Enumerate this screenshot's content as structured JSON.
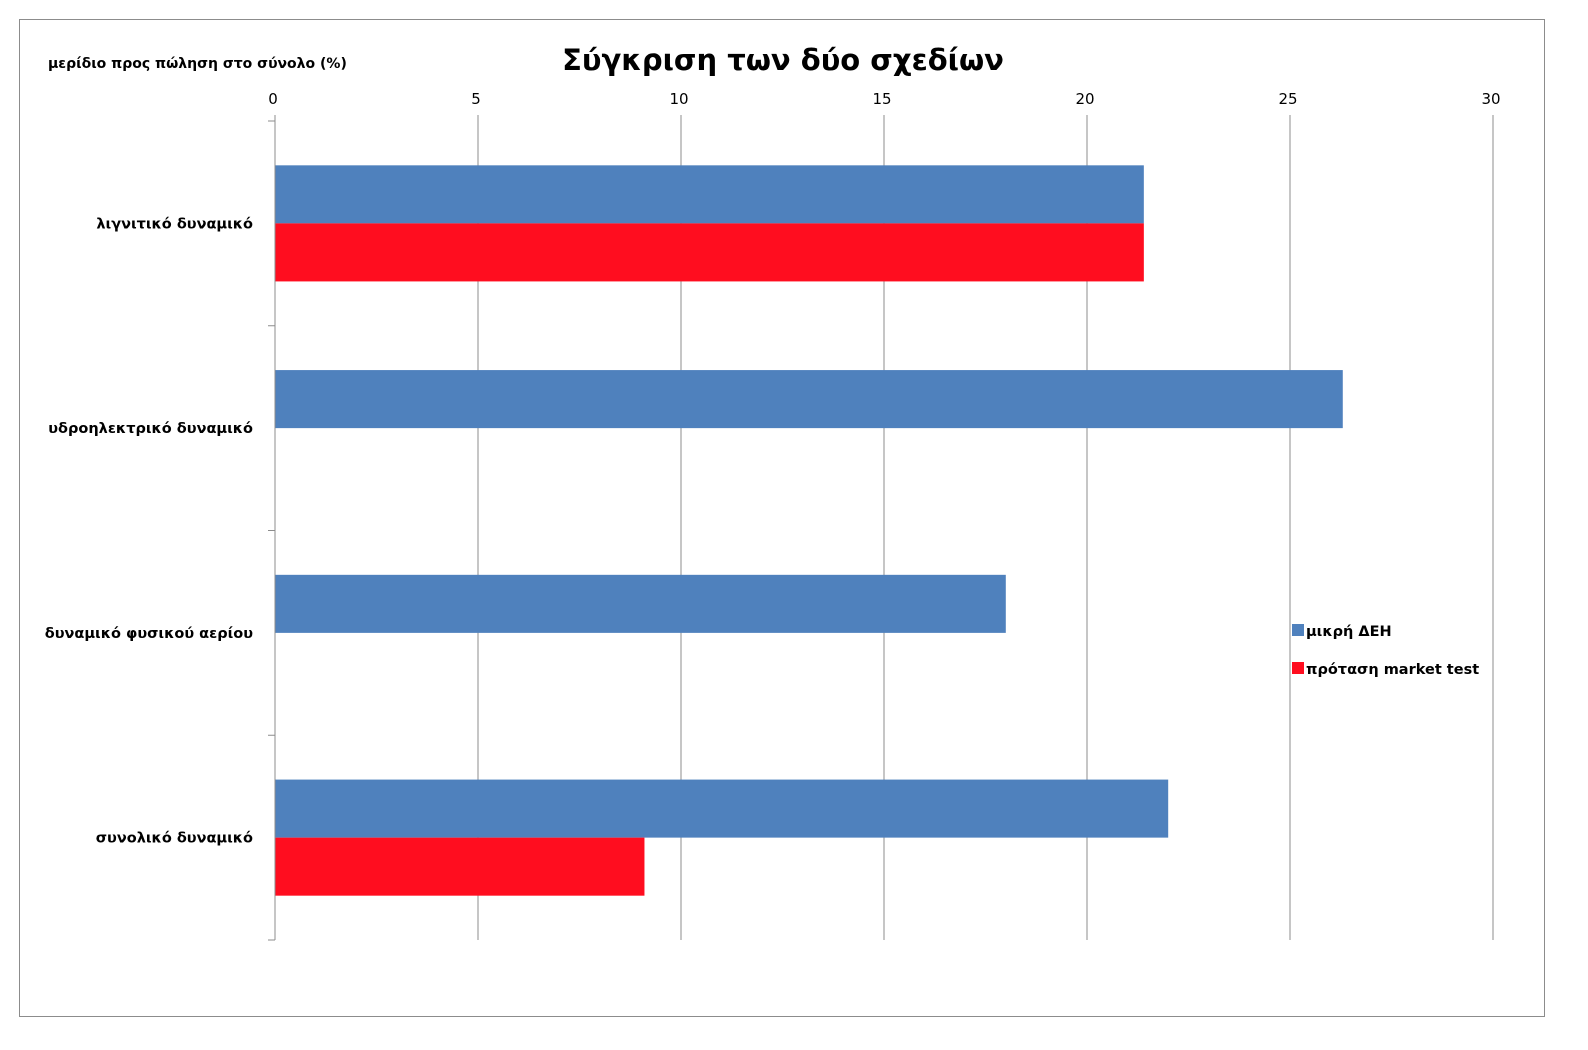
{
  "chart_data": {
    "type": "bar",
    "orientation": "horizontal",
    "title": "Σύγκριση των δύο σχεδίων",
    "unit_label": "μερίδιο προς πώληση στο σύνολο (%)",
    "categories": [
      "λιγνιτικό δυναμικό",
      "υδροηλεκτρικό δυναμικό",
      "δυναμικό φυσικού αερίου",
      "συνολικό δυναμικό"
    ],
    "xlim": [
      0,
      30
    ],
    "xticks": [
      0,
      5,
      10,
      15,
      20,
      25,
      30
    ],
    "grid": true,
    "legend_position": "right",
    "axis_position": "top",
    "series": [
      {
        "name": "μικρή ΔΕΗ",
        "color": "#4f81bd",
        "values": [
          21.4,
          26.3,
          18.0,
          22.0
        ]
      },
      {
        "name": "πρόταση market test",
        "color": "#ff0d1f",
        "values": [
          21.4,
          null,
          null,
          9.1
        ]
      }
    ]
  }
}
